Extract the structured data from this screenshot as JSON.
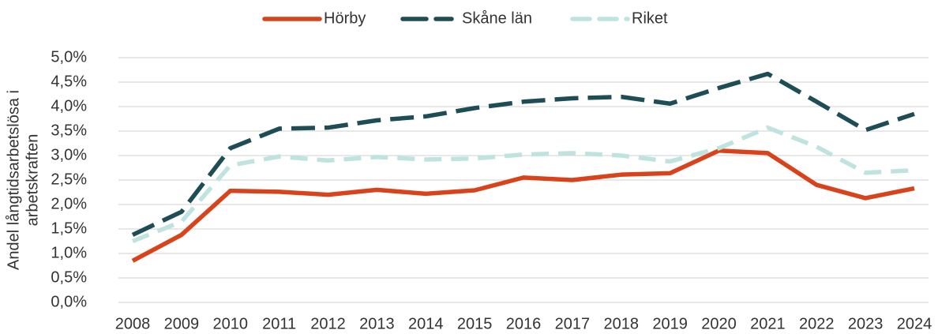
{
  "chart_data": {
    "type": "line",
    "y_label": [
      "Andel långtidsarbetslösa i",
      "arbetskraften"
    ],
    "categories": [
      "2008",
      "2009",
      "2010",
      "2011",
      "2012",
      "2013",
      "2014",
      "2015",
      "2016",
      "2017",
      "2018",
      "2019",
      "2020",
      "2021",
      "2022",
      "2023",
      "2024"
    ],
    "series": [
      {
        "name": "Hörby",
        "color": "#d9431c",
        "dash": "solid",
        "values": [
          0.85,
          1.38,
          2.28,
          2.26,
          2.2,
          2.3,
          2.22,
          2.29,
          2.55,
          2.5,
          2.61,
          2.64,
          3.1,
          3.05,
          2.4,
          2.13,
          2.33
        ]
      },
      {
        "name": "Skåne län",
        "color": "#1e4d55",
        "dash": "dashed",
        "values": [
          1.38,
          1.85,
          3.15,
          3.55,
          3.57,
          3.72,
          3.8,
          3.97,
          4.1,
          4.17,
          4.2,
          4.06,
          4.38,
          4.67,
          4.1,
          3.52,
          3.85
        ]
      },
      {
        "name": "Riket",
        "color": "#bfe3df",
        "dash": "dashed",
        "values": [
          1.25,
          1.65,
          2.8,
          2.98,
          2.9,
          2.97,
          2.92,
          2.94,
          3.02,
          3.05,
          3.0,
          2.88,
          3.15,
          3.57,
          3.18,
          2.65,
          2.7
        ]
      }
    ],
    "ylim": [
      0,
      5
    ],
    "yticks": [
      {
        "value": 0,
        "label": "0,0%"
      },
      {
        "value": 0.5,
        "label": "0,5%"
      },
      {
        "value": 1,
        "label": "1,0%"
      },
      {
        "value": 1.5,
        "label": "1,5%"
      },
      {
        "value": 2,
        "label": "2,0%"
      },
      {
        "value": 2.5,
        "label": "2,5%"
      },
      {
        "value": 3,
        "label": "3,0%"
      },
      {
        "value": 3.5,
        "label": "3,5%"
      },
      {
        "value": 4,
        "label": "4,0%"
      },
      {
        "value": 4.5,
        "label": "4,5%"
      },
      {
        "value": 5,
        "label": "5,0%"
      }
    ],
    "grid": true,
    "legend": "top"
  }
}
